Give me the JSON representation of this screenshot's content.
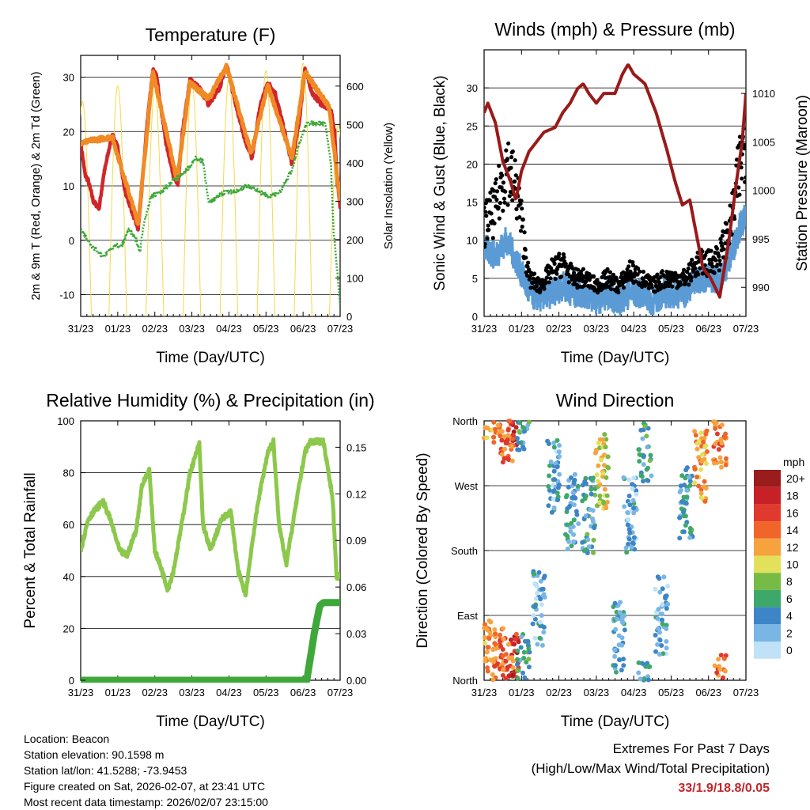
{
  "chart_data": [
    {
      "type": "line",
      "title": "Temperature (F)",
      "xlabel": "Time (Day/UTC)",
      "ylabel": "2m & 9m T (Red, Orange) & 2m Td (Green)",
      "y2label": "Solar Insolation (Yellow)",
      "x_ticks": [
        "31/23",
        "01/23",
        "02/23",
        "03/23",
        "04/23",
        "05/23",
        "06/23",
        "07/23"
      ],
      "ylim": [
        -14,
        34
      ],
      "y_ticks": [
        -10,
        0,
        10,
        20,
        30
      ],
      "y2lim": [
        0,
        680
      ],
      "y2_ticks": [
        0,
        100,
        200,
        300,
        400,
        500,
        600
      ],
      "series": [
        {
          "name": "2m T",
          "color": "#d0262a",
          "axis": "left",
          "points": [
            [
              0,
              18
            ],
            [
              0.12,
              12
            ],
            [
              0.2,
              11
            ],
            [
              0.35,
              7
            ],
            [
              0.5,
              6
            ],
            [
              0.62,
              12
            ],
            [
              0.85,
              19.5
            ],
            [
              1,
              17
            ],
            [
              1.2,
              9
            ],
            [
              1.4,
              5
            ],
            [
              1.55,
              2
            ],
            [
              1.62,
              7
            ],
            [
              1.8,
              22
            ],
            [
              1.95,
              31.5
            ],
            [
              2.05,
              30
            ],
            [
              2.3,
              18
            ],
            [
              2.5,
              12
            ],
            [
              2.62,
              10
            ],
            [
              2.75,
              20
            ],
            [
              2.95,
              29.5
            ],
            [
              3.2,
              28
            ],
            [
              3.45,
              25
            ],
            [
              3.55,
              26
            ],
            [
              3.75,
              28
            ],
            [
              3.93,
              32.5
            ],
            [
              4.15,
              26
            ],
            [
              4.45,
              18
            ],
            [
              4.62,
              15
            ],
            [
              4.85,
              25
            ],
            [
              5.05,
              29
            ],
            [
              5.25,
              27
            ],
            [
              5.5,
              20
            ],
            [
              5.7,
              14
            ],
            [
              5.9,
              22
            ],
            [
              6.05,
              31.5
            ],
            [
              6.25,
              27
            ],
            [
              6.5,
              25
            ],
            [
              6.75,
              24
            ],
            [
              6.85,
              20
            ],
            [
              6.92,
              11
            ],
            [
              7,
              6
            ]
          ]
        },
        {
          "name": "9m T",
          "color": "#f08a24",
          "axis": "left",
          "points": [
            [
              0,
              18
            ],
            [
              0.85,
              19
            ],
            [
              1.55,
              3
            ],
            [
              1.95,
              31
            ],
            [
              2.6,
              11
            ],
            [
              2.95,
              29
            ],
            [
              3.45,
              26
            ],
            [
              3.93,
              32
            ],
            [
              4.6,
              16
            ],
            [
              5.05,
              28.5
            ],
            [
              5.7,
              15
            ],
            [
              6.05,
              31
            ],
            [
              6.7,
              24.5
            ],
            [
              6.9,
              13
            ],
            [
              7,
              7
            ]
          ]
        },
        {
          "name": "2m Td",
          "color": "#3ea83a",
          "axis": "left",
          "points": [
            [
              0,
              2
            ],
            [
              0.3,
              -1
            ],
            [
              0.6,
              -3
            ],
            [
              0.9,
              -1
            ],
            [
              1.1,
              -1
            ],
            [
              1.3,
              2
            ],
            [
              1.5,
              0
            ],
            [
              1.6,
              -2
            ],
            [
              1.7,
              3
            ],
            [
              1.9,
              8
            ],
            [
              2.2,
              9
            ],
            [
              2.5,
              11
            ],
            [
              2.75,
              12
            ],
            [
              3.1,
              15
            ],
            [
              3.3,
              14.5
            ],
            [
              3.45,
              7
            ],
            [
              3.7,
              8
            ],
            [
              3.9,
              9
            ],
            [
              4.2,
              9
            ],
            [
              4.5,
              10
            ],
            [
              4.8,
              9
            ],
            [
              5.1,
              8
            ],
            [
              5.4,
              9
            ],
            [
              5.7,
              13
            ],
            [
              5.9,
              18
            ],
            [
              6.1,
              21.5
            ],
            [
              6.4,
              21.5
            ],
            [
              6.6,
              21.5
            ],
            [
              6.75,
              14
            ],
            [
              6.82,
              2
            ],
            [
              6.9,
              -4
            ],
            [
              7,
              -12
            ]
          ]
        }
      ]
    },
    {
      "type": "scatter",
      "title": "Winds (mph) & Pressure (mb)",
      "xlabel": "Time (Day/UTC)",
      "ylabel": "Sonic Wind & Gust (Blue, Black)",
      "y2label": "Station Pressure (Maroon)",
      "x_ticks": [
        "31/23",
        "01/23",
        "02/23",
        "03/23",
        "04/23",
        "05/23",
        "06/23",
        "07/23"
      ],
      "ylim": [
        0,
        35
      ],
      "y_ticks": [
        0,
        5,
        10,
        15,
        20,
        25,
        30
      ],
      "y2lim": [
        987,
        1014.5
      ],
      "y2_ticks": [
        990,
        995,
        1000,
        1005,
        1010
      ],
      "series": [
        {
          "name": "Station Pressure",
          "color": "#9a1a1a",
          "axis": "right",
          "points": [
            [
              0,
              1008
            ],
            [
              0.1,
              1009
            ],
            [
              0.3,
              1007
            ],
            [
              0.5,
              1003
            ],
            [
              0.7,
              1001
            ],
            [
              0.85,
              999
            ],
            [
              1,
              1002
            ],
            [
              1.2,
              1004
            ],
            [
              1.4,
              1005
            ],
            [
              1.6,
              1006
            ],
            [
              1.9,
              1006.5
            ],
            [
              2.1,
              1008
            ],
            [
              2.3,
              1009
            ],
            [
              2.5,
              1010.5
            ],
            [
              2.65,
              1011
            ],
            [
              2.8,
              1010
            ],
            [
              3,
              1009
            ],
            [
              3.2,
              1010
            ],
            [
              3.5,
              1010
            ],
            [
              3.7,
              1012
            ],
            [
              3.85,
              1013
            ],
            [
              4,
              1012
            ],
            [
              4.3,
              1011
            ],
            [
              4.6,
              1008
            ],
            [
              4.9,
              1004
            ],
            [
              5.1,
              1001
            ],
            [
              5.3,
              998.5
            ],
            [
              5.5,
              999
            ],
            [
              5.7,
              995
            ],
            [
              5.85,
              992
            ],
            [
              6.05,
              991
            ],
            [
              6.3,
              989
            ],
            [
              6.55,
              995
            ],
            [
              6.75,
              1001
            ],
            [
              6.9,
              1005
            ],
            [
              7,
              1010
            ]
          ]
        }
      ],
      "wind_sustained": [
        [
          0,
          9
        ],
        [
          0.3,
          8
        ],
        [
          0.6,
          10
        ],
        [
          0.9,
          7
        ],
        [
          1.2,
          3
        ],
        [
          1.5,
          2.5
        ],
        [
          1.8,
          3
        ],
        [
          2.1,
          4
        ],
        [
          2.4,
          3
        ],
        [
          2.7,
          3
        ],
        [
          3,
          2
        ],
        [
          3.3,
          3
        ],
        [
          3.6,
          2
        ],
        [
          3.9,
          3
        ],
        [
          4.2,
          3
        ],
        [
          4.5,
          2
        ],
        [
          4.8,
          3
        ],
        [
          5.1,
          3
        ],
        [
          5.4,
          3
        ],
        [
          5.7,
          5
        ],
        [
          6,
          5
        ],
        [
          6.3,
          5
        ],
        [
          6.6,
          8
        ],
        [
          6.85,
          12
        ],
        [
          7,
          13
        ]
      ],
      "wind_gust": [
        [
          0,
          12
        ],
        [
          0.3,
          14
        ],
        [
          0.6,
          20
        ],
        [
          0.9,
          16
        ],
        [
          1.2,
          5
        ],
        [
          1.5,
          4
        ],
        [
          1.8,
          6
        ],
        [
          2.1,
          7
        ],
        [
          2.4,
          5
        ],
        [
          2.7,
          5
        ],
        [
          3,
          4
        ],
        [
          3.3,
          5
        ],
        [
          3.6,
          4
        ],
        [
          3.9,
          6
        ],
        [
          4.2,
          5
        ],
        [
          4.5,
          4
        ],
        [
          4.8,
          5
        ],
        [
          5.1,
          5
        ],
        [
          5.4,
          5
        ],
        [
          5.7,
          7
        ],
        [
          6,
          7
        ],
        [
          6.3,
          8
        ],
        [
          6.6,
          12
        ],
        [
          6.85,
          20
        ],
        [
          7,
          24
        ]
      ]
    },
    {
      "type": "line",
      "title": "Relative Humidity (%) & Precipitation (in)",
      "xlabel": "Time (Day/UTC)",
      "ylabel": "Percent & Total Rainfall",
      "x_ticks": [
        "31/23",
        "01/23",
        "02/23",
        "03/23",
        "04/23",
        "05/23",
        "06/23",
        "07/23"
      ],
      "ylim": [
        0,
        100
      ],
      "y_ticks": [
        0,
        20,
        40,
        60,
        80,
        100
      ],
      "y2lim": [
        0,
        0.167
      ],
      "y2_ticks": [
        "0.00",
        "0.03",
        "0.06",
        "0.09",
        "0.12",
        "0.15"
      ],
      "series": [
        {
          "name": "Relative Humidity",
          "color": "#8cc84b",
          "axis": "left",
          "points": [
            [
              0,
              50
            ],
            [
              0.2,
              62
            ],
            [
              0.35,
              65
            ],
            [
              0.6,
              69
            ],
            [
              0.8,
              62
            ],
            [
              1.05,
              50
            ],
            [
              1.25,
              48
            ],
            [
              1.5,
              58
            ],
            [
              1.65,
              75
            ],
            [
              1.85,
              81
            ],
            [
              2,
              50
            ],
            [
              2.2,
              42
            ],
            [
              2.35,
              35
            ],
            [
              2.5,
              42
            ],
            [
              2.7,
              58
            ],
            [
              2.95,
              80
            ],
            [
              3.2,
              91
            ],
            [
              3.3,
              60
            ],
            [
              3.5,
              50
            ],
            [
              3.8,
              62
            ],
            [
              4.05,
              65
            ],
            [
              4.25,
              42
            ],
            [
              4.45,
              33
            ],
            [
              4.6,
              50
            ],
            [
              4.8,
              70
            ],
            [
              5.05,
              88
            ],
            [
              5.2,
              92
            ],
            [
              5.35,
              60
            ],
            [
              5.55,
              45
            ],
            [
              5.8,
              67
            ],
            [
              6.05,
              88
            ],
            [
              6.2,
              92
            ],
            [
              6.55,
              92
            ],
            [
              6.8,
              70
            ],
            [
              6.9,
              40
            ],
            [
              7,
              40
            ]
          ]
        },
        {
          "name": "Total Precipitation",
          "color": "#3ea83a",
          "axis": "right",
          "points": [
            [
              0,
              0
            ],
            [
              6.1,
              0
            ],
            [
              6.3,
              0.03
            ],
            [
              6.45,
              0.048
            ],
            [
              6.55,
              0.05
            ],
            [
              7,
              0.05
            ]
          ]
        }
      ]
    },
    {
      "type": "scatter",
      "title": "Wind Direction",
      "xlabel": "Time (Day/UTC)",
      "ylabel": "Direction (Colored By Speed)",
      "x_ticks": [
        "31/23",
        "01/23",
        "02/23",
        "03/23",
        "04/23",
        "05/23",
        "06/23",
        "07/23"
      ],
      "y_ticks": [
        "North",
        "East",
        "South",
        "West",
        "North"
      ],
      "ylim": [
        0,
        360
      ],
      "colorbar_title": "mph",
      "colorbar_labels": [
        "20+",
        "18",
        "16",
        "14",
        "12",
        "10",
        "8",
        "6",
        "4",
        "2",
        "0"
      ],
      "colorbar_colors": [
        "#9b1c1c",
        "#c62127",
        "#e03a2e",
        "#f1652b",
        "#f6a33f",
        "#e3e05b",
        "#76bb45",
        "#3ea86a",
        "#3d85c6",
        "#79b6e6",
        "#bfe2f7"
      ],
      "clusters": [
        {
          "x": 0.15,
          "dir": 30,
          "speed": 12
        },
        {
          "x": 0.4,
          "dir": 25,
          "speed": 14
        },
        {
          "x": 0.75,
          "dir": 15,
          "speed": 17
        },
        {
          "x": 1.05,
          "dir": 10,
          "speed": 5
        },
        {
          "x": 1.45,
          "dir": 100,
          "speed": 3
        },
        {
          "x": 1.85,
          "dir": 280,
          "speed": 3
        },
        {
          "x": 2.35,
          "dir": 235,
          "speed": 4
        },
        {
          "x": 2.8,
          "dir": 230,
          "speed": 5
        },
        {
          "x": 3.15,
          "dir": 290,
          "speed": 10
        },
        {
          "x": 3.6,
          "dir": 60,
          "speed": 4
        },
        {
          "x": 3.9,
          "dir": 230,
          "speed": 3
        },
        {
          "x": 4.3,
          "dir": 330,
          "speed": 5
        },
        {
          "x": 4.75,
          "dir": 90,
          "speed": 3
        },
        {
          "x": 5.4,
          "dir": 245,
          "speed": 5
        },
        {
          "x": 5.8,
          "dir": 300,
          "speed": 12
        },
        {
          "x": 6.3,
          "dir": 345,
          "speed": 14
        },
        {
          "x": 0.6,
          "dir": 355,
          "speed": 14
        }
      ]
    }
  ],
  "footer": {
    "location": "Location: Beacon",
    "elevation": "Station elevation: 90.1598 m",
    "latlon": "Station lat/lon: 41.5288; -73.9453",
    "created": "Figure created on Sat, 2026-02-07, at 23:41 UTC",
    "timestamp": "Most recent data timestamp: 2026/02/07 23:15:00"
  },
  "extremes": {
    "title": "Extremes For Past 7 Days",
    "subtitle": "(High/Low/Max Wind/Total Precipitation)",
    "values": "33/1.9/18.8/0.05"
  }
}
